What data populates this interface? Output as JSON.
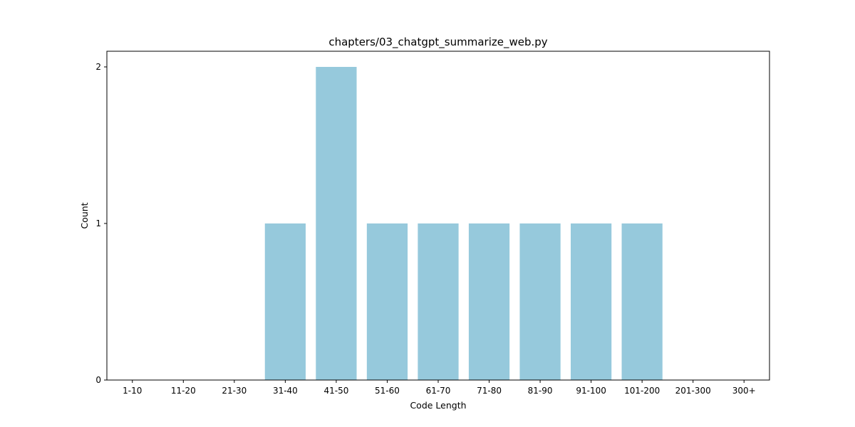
{
  "chart_data": {
    "type": "bar",
    "title": "chapters/03_chatgpt_summarize_web.py",
    "xlabel": "Code Length",
    "ylabel": "Count",
    "categories": [
      "1-10",
      "11-20",
      "21-30",
      "31-40",
      "41-50",
      "51-60",
      "61-70",
      "71-80",
      "81-90",
      "91-100",
      "101-200",
      "201-300",
      "300+"
    ],
    "values": [
      0,
      0,
      0,
      1,
      2,
      1,
      1,
      1,
      1,
      1,
      1,
      0,
      0
    ],
    "ylim": [
      0,
      2.1
    ],
    "yticks": [
      0,
      1,
      2
    ],
    "bar_color": "#96c9dc",
    "grid": false,
    "legend": "none"
  }
}
